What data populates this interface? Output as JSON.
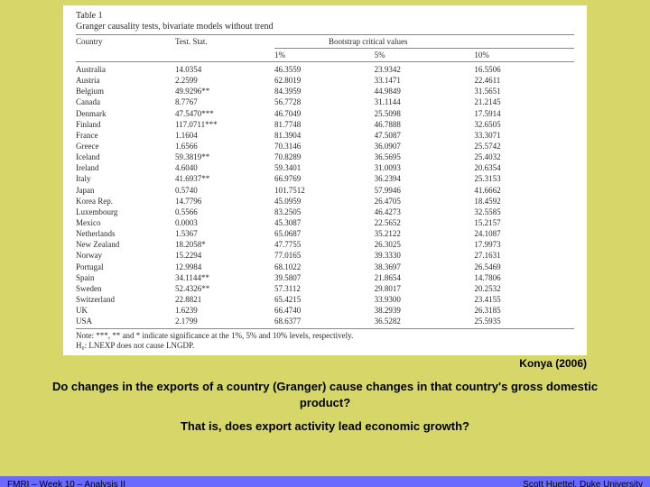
{
  "table": {
    "title": "Table 1",
    "subtitle": "Granger causality tests, bivariate models without trend",
    "headers": {
      "country": "Country",
      "test": "Test. Stat.",
      "boot": "Bootstrap critical values",
      "cv1": "1%",
      "cv5": "5%",
      "cv10": "10%"
    },
    "rows": [
      {
        "c": "Australia",
        "t": "14.0354",
        "v1": "46.3559",
        "v5": "23.9342",
        "v10": "16.5506"
      },
      {
        "c": "Austria",
        "t": "2.2599",
        "v1": "62.8019",
        "v5": "33.1471",
        "v10": "22.4611"
      },
      {
        "c": "Belgium",
        "t": "49.9296**",
        "v1": "84.3959",
        "v5": "44.9849",
        "v10": "31.5651"
      },
      {
        "c": "Canada",
        "t": "8.7767",
        "v1": "56.7728",
        "v5": "31.1144",
        "v10": "21.2145"
      },
      {
        "c": "Denmark",
        "t": "47.5470***",
        "v1": "46.7049",
        "v5": "25.5098",
        "v10": "17.5914"
      },
      {
        "c": "Finland",
        "t": "117.0711***",
        "v1": "81.7748",
        "v5": "46.7888",
        "v10": "32.6505"
      },
      {
        "c": "France",
        "t": "1.1604",
        "v1": "81.3904",
        "v5": "47.5087",
        "v10": "33.3071"
      },
      {
        "c": "Greece",
        "t": "1.6566",
        "v1": "70.3146",
        "v5": "36.0907",
        "v10": "25.5742"
      },
      {
        "c": "Iceland",
        "t": "59.3819**",
        "v1": "70.8289",
        "v5": "36.5695",
        "v10": "25.4032"
      },
      {
        "c": "Ireland",
        "t": "4.6040",
        "v1": "59.3401",
        "v5": "31.0093",
        "v10": "20.6354"
      },
      {
        "c": "Italy",
        "t": "41.6937**",
        "v1": "66.9769",
        "v5": "36.2394",
        "v10": "25.3153"
      },
      {
        "c": "Japan",
        "t": "0.5740",
        "v1": "101.7512",
        "v5": "57.9946",
        "v10": "41.6662"
      },
      {
        "c": "Korea Rep.",
        "t": "14.7796",
        "v1": "45.0959",
        "v5": "26.4705",
        "v10": "18.4592"
      },
      {
        "c": "Luxembourg",
        "t": "0.5566",
        "v1": "83.2505",
        "v5": "46.4273",
        "v10": "32.5585"
      },
      {
        "c": "Mexico",
        "t": "0.0003",
        "v1": "45.3087",
        "v5": "22.5652",
        "v10": "15.2157"
      },
      {
        "c": "Netherlands",
        "t": "1.5367",
        "v1": "65.0687",
        "v5": "35.2122",
        "v10": "24.1087"
      },
      {
        "c": "New Zealand",
        "t": "18.2058*",
        "v1": "47.7755",
        "v5": "26.3025",
        "v10": "17.9973"
      },
      {
        "c": "Norway",
        "t": "15.2294",
        "v1": "77.0165",
        "v5": "39.3330",
        "v10": "27.1631"
      },
      {
        "c": "Portugal",
        "t": "12.9984",
        "v1": "68.1022",
        "v5": "38.3697",
        "v10": "26.5469"
      },
      {
        "c": "Spain",
        "t": "34.1144**",
        "v1": "39.5807",
        "v5": "21.8654",
        "v10": "14.7806"
      },
      {
        "c": "Sweden",
        "t": "52.4326**",
        "v1": "57.3112",
        "v5": "29.8017",
        "v10": "20.2532"
      },
      {
        "c": "Switzerland",
        "t": "22.8821",
        "v1": "65.4215",
        "v5": "33.9300",
        "v10": "23.4155"
      },
      {
        "c": "UK",
        "t": "1.6239",
        "v1": "66.4740",
        "v5": "38.2939",
        "v10": "26.3185"
      },
      {
        "c": "USA",
        "t": "2.1799",
        "v1": "68.6377",
        "v5": "36.5282",
        "v10": "25.5935"
      }
    ],
    "note": "Note: ***, ** and * indicate significance at the 1%, 5% and 10% levels, respectively.",
    "h0": "H₀: LNEXP does not cause LNGDP."
  },
  "citation": "Konya (2006)",
  "question_line1": "Do changes in the exports of a country (Granger) cause changes in that country's gross domestic product?",
  "question_line2": "That is, does export activity lead economic growth?",
  "footer": {
    "left": "FMRI – Week 10 – Analysis II",
    "right": "Scott Huettel, Duke University"
  },
  "colors": {
    "background": "#d6d669",
    "footer": "#6a6aff",
    "paper": "#ffffff"
  }
}
